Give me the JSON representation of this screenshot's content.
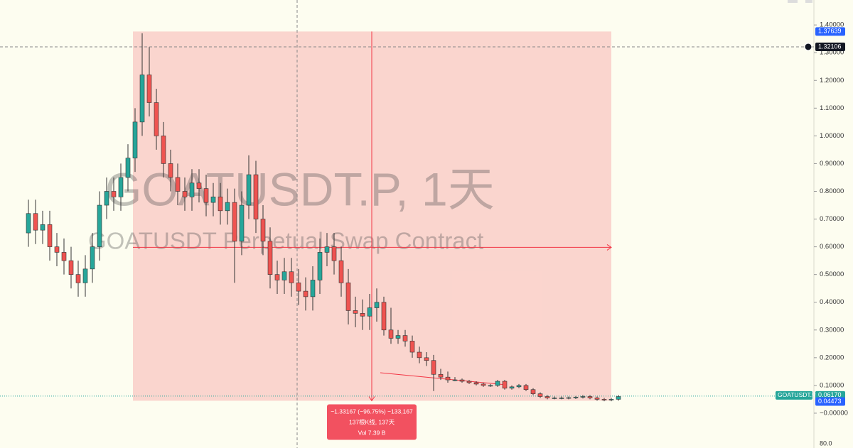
{
  "chart_data": {
    "type": "candlestick",
    "watermark": {
      "title": "GOATUSDT.P, 1天",
      "subtitle": "GOATUSDT Perpetual Swap Contract"
    },
    "up_color": "#26a69a",
    "down_color": "#ef5350",
    "ylim": [
      -0.1,
      1.49
    ],
    "yticks": [
      {
        "value": 1.4,
        "label": "1.40000"
      },
      {
        "value": 1.3,
        "label": "1.30000"
      },
      {
        "value": 1.2,
        "label": "1.20000"
      },
      {
        "value": 1.1,
        "label": "1.10000"
      },
      {
        "value": 1.0,
        "label": "1.00000"
      },
      {
        "value": 0.9,
        "label": "0.90000"
      },
      {
        "value": 0.8,
        "label": "0.80000"
      },
      {
        "value": 0.7,
        "label": "0.70000"
      },
      {
        "value": 0.6,
        "label": "0.60000"
      },
      {
        "value": 0.5,
        "label": "0.50000"
      },
      {
        "value": 0.4,
        "label": "0.40000"
      },
      {
        "value": 0.3,
        "label": "0.30000"
      },
      {
        "value": 0.2,
        "label": "0.20000"
      },
      {
        "value": 0.1,
        "label": "0.10000"
      },
      {
        "value": 0,
        "label": "−0.00000"
      }
    ],
    "open": [
      0.65,
      0.72,
      0.66,
      0.68,
      0.6,
      0.58,
      0.55,
      0.5,
      0.47,
      0.52,
      0.6,
      0.75,
      0.8,
      0.78,
      0.85,
      0.92,
      1.05,
      1.22,
      1.12,
      1.0,
      0.9,
      0.85,
      0.8,
      0.78,
      0.83,
      0.81,
      0.76,
      0.78,
      0.73,
      0.76,
      0.62,
      0.75,
      0.86,
      0.7,
      0.62,
      0.5,
      0.48,
      0.51,
      0.47,
      0.44,
      0.42,
      0.48,
      0.58,
      0.6,
      0.55,
      0.47,
      0.37,
      0.36,
      0.35,
      0.38,
      0.4,
      0.3,
      0.27,
      0.28,
      0.26,
      0.22,
      0.2,
      0.19,
      0.14,
      0.13,
      0.12,
      0.12,
      0.115,
      0.11,
      0.105,
      0.1,
      0.1,
      0.115,
      0.09,
      0.095,
      0.1,
      0.085,
      0.07,
      0.06,
      0.055,
      0.055,
      0.055,
      0.056,
      0.058,
      0.06,
      0.055,
      0.05,
      0.048,
      0.05
    ],
    "high": [
      0.77,
      0.77,
      0.73,
      0.73,
      0.65,
      0.63,
      0.6,
      0.55,
      0.57,
      0.65,
      0.8,
      0.85,
      0.85,
      0.9,
      0.97,
      1.1,
      1.37,
      1.32,
      1.17,
      1.05,
      0.95,
      0.9,
      0.85,
      0.88,
      0.88,
      0.86,
      0.83,
      0.83,
      0.81,
      0.81,
      0.8,
      0.93,
      0.91,
      0.75,
      0.67,
      0.55,
      0.56,
      0.56,
      0.52,
      0.49,
      0.53,
      0.63,
      0.65,
      0.65,
      0.6,
      0.52,
      0.42,
      0.41,
      0.43,
      0.45,
      0.42,
      0.38,
      0.3,
      0.3,
      0.28,
      0.24,
      0.22,
      0.21,
      0.16,
      0.15,
      0.13,
      0.125,
      0.12,
      0.115,
      0.11,
      0.105,
      0.12,
      0.12,
      0.1,
      0.105,
      0.105,
      0.09,
      0.075,
      0.065,
      0.06,
      0.06,
      0.06,
      0.062,
      0.065,
      0.065,
      0.06,
      0.055,
      0.055,
      0.065
    ],
    "low": [
      0.6,
      0.61,
      0.61,
      0.55,
      0.53,
      0.5,
      0.45,
      0.42,
      0.42,
      0.47,
      0.55,
      0.7,
      0.73,
      0.73,
      0.8,
      0.87,
      1.0,
      1.07,
      0.95,
      0.85,
      0.8,
      0.75,
      0.73,
      0.73,
      0.76,
      0.71,
      0.71,
      0.68,
      0.68,
      0.47,
      0.57,
      0.7,
      0.65,
      0.57,
      0.45,
      0.43,
      0.43,
      0.42,
      0.39,
      0.37,
      0.37,
      0.43,
      0.53,
      0.5,
      0.42,
      0.32,
      0.31,
      0.3,
      0.3,
      0.33,
      0.28,
      0.25,
      0.25,
      0.24,
      0.2,
      0.18,
      0.17,
      0.08,
      0.12,
      0.11,
      0.115,
      0.11,
      0.105,
      0.1,
      0.095,
      0.095,
      0.095,
      0.085,
      0.085,
      0.09,
      0.08,
      0.065,
      0.055,
      0.05,
      0.05,
      0.05,
      0.05,
      0.051,
      0.053,
      0.05,
      0.045,
      0.043,
      0.043,
      0.045
    ],
    "close": [
      0.72,
      0.66,
      0.68,
      0.6,
      0.58,
      0.55,
      0.5,
      0.47,
      0.52,
      0.6,
      0.75,
      0.8,
      0.78,
      0.85,
      0.92,
      1.05,
      1.22,
      1.12,
      1.0,
      0.9,
      0.85,
      0.8,
      0.78,
      0.83,
      0.81,
      0.76,
      0.78,
      0.73,
      0.76,
      0.62,
      0.75,
      0.86,
      0.7,
      0.62,
      0.5,
      0.48,
      0.51,
      0.47,
      0.44,
      0.42,
      0.48,
      0.58,
      0.6,
      0.55,
      0.47,
      0.37,
      0.36,
      0.35,
      0.38,
      0.4,
      0.3,
      0.27,
      0.28,
      0.26,
      0.22,
      0.2,
      0.19,
      0.14,
      0.13,
      0.12,
      0.12,
      0.115,
      0.11,
      0.105,
      0.1,
      0.1,
      0.115,
      0.09,
      0.095,
      0.1,
      0.085,
      0.07,
      0.06,
      0.055,
      0.055,
      0.055,
      0.056,
      0.058,
      0.06,
      0.055,
      0.05,
      0.048,
      0.05,
      0.06
    ],
    "measure": {
      "from": {
        "value": 1.37639,
        "label": "1.37639"
      },
      "to": {
        "value": 0.04473,
        "label": "0.04473"
      },
      "lines": [
        "−1.33167 (−96.75%) −133,167",
        "137根K线, 137天",
        "Vol 7.39 B"
      ]
    },
    "crosshair": {
      "value": 1.32106,
      "label": "1.32106"
    },
    "last_price": {
      "value": 0.0617,
      "label": "0.06170",
      "symbol": "GOATUSDT.P"
    },
    "volume_axis_label": "80.0"
  }
}
